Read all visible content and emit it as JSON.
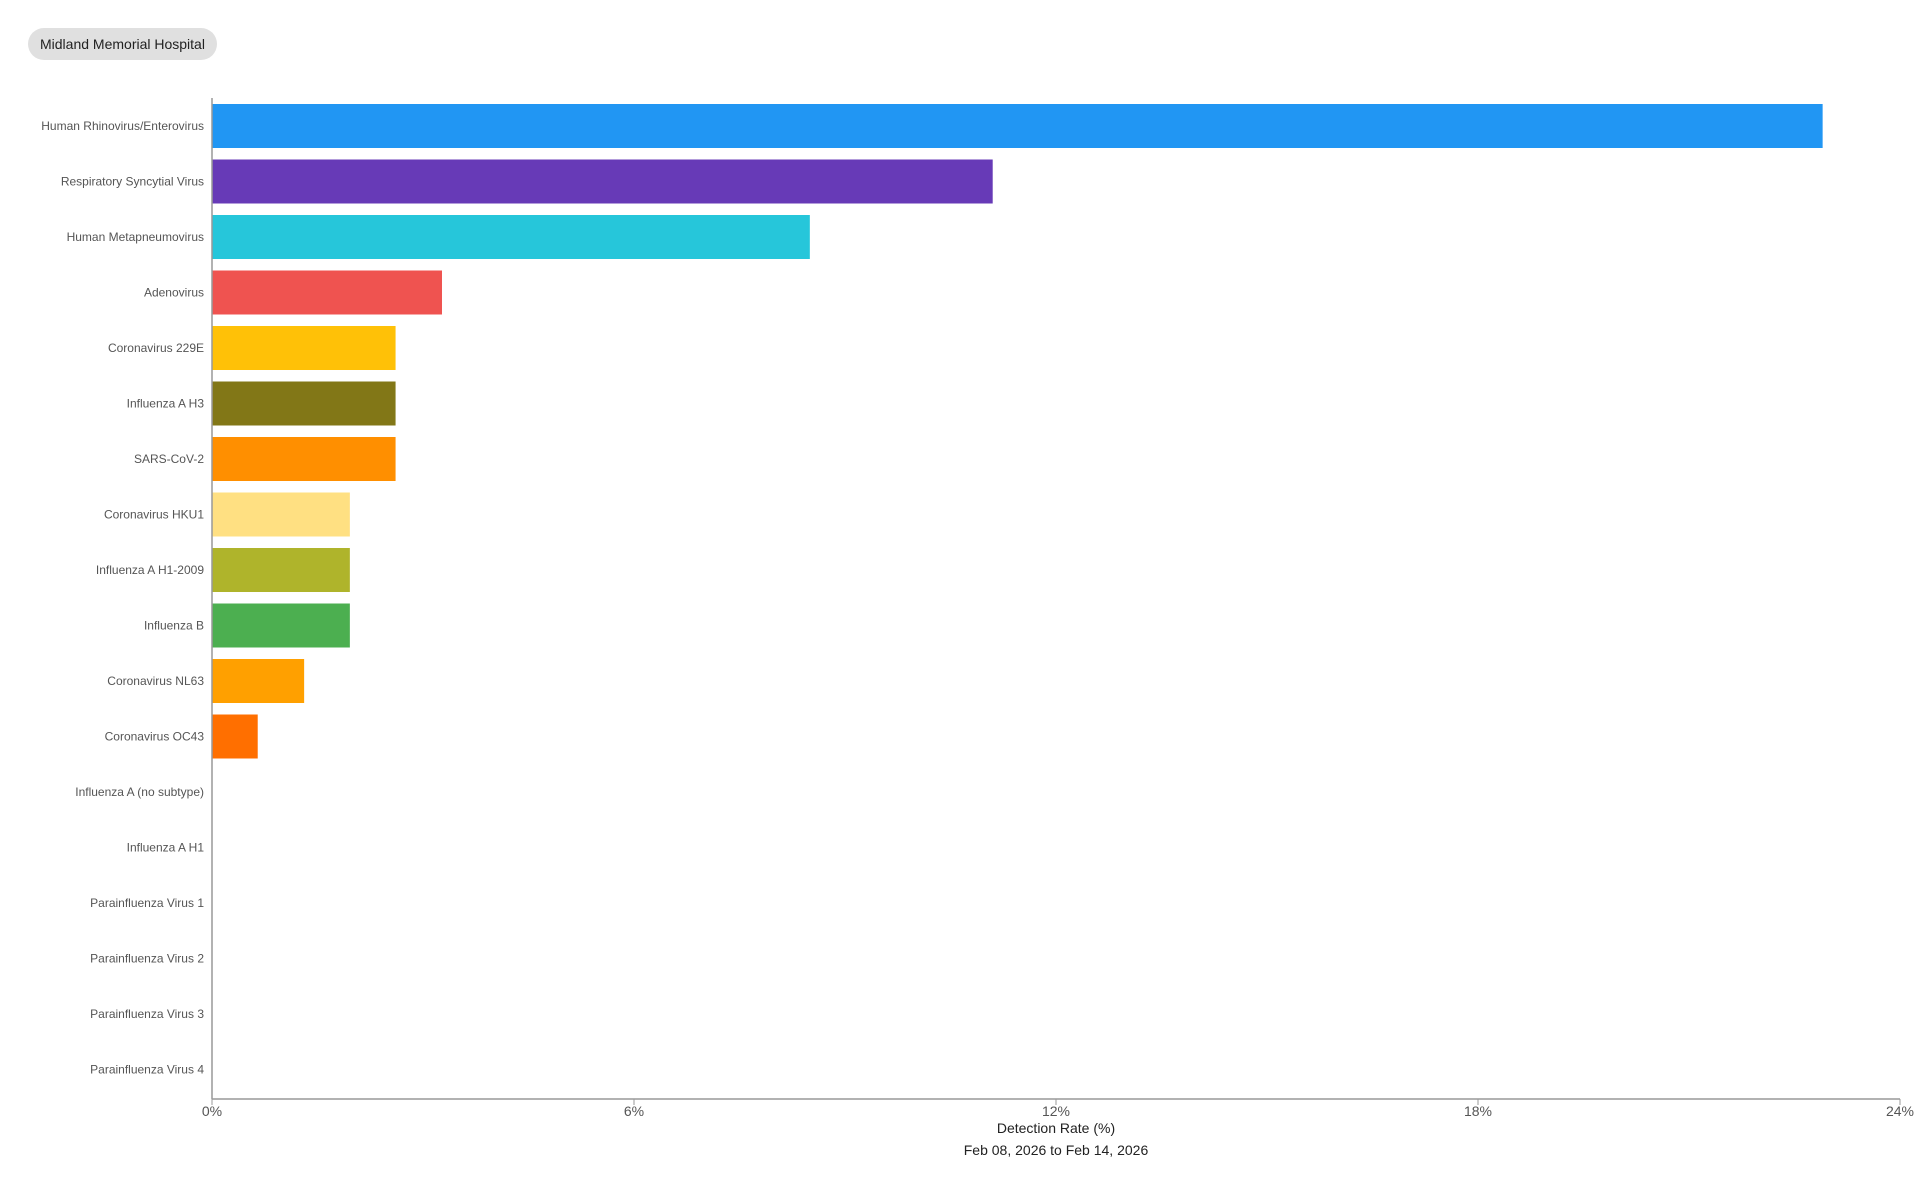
{
  "hospital": {
    "label": "Midland Memorial Hospital"
  },
  "chart_data": {
    "type": "bar",
    "orientation": "horizontal",
    "categories": [
      "Human Rhinovirus/Enterovirus",
      "Respiratory Syncytial Virus",
      "Human Metapneumovirus",
      "Adenovirus",
      "Coronavirus 229E",
      "Influenza A H3",
      "SARS-CoV-2",
      "Coronavirus HKU1",
      "Influenza A H1-2009",
      "Influenza B",
      "Coronavirus NL63",
      "Coronavirus OC43",
      "Influenza A (no subtype)",
      "Influenza A H1",
      "Parainfluenza Virus 1",
      "Parainfluenza Virus 2",
      "Parainfluenza Virus 3",
      "Parainfluenza Virus 4"
    ],
    "values": [
      22.9,
      11.1,
      8.5,
      3.27,
      2.61,
      2.61,
      2.61,
      1.96,
      1.96,
      1.96,
      1.31,
      0.65,
      0,
      0,
      0,
      0,
      0,
      0
    ],
    "colors": [
      "#2196f3",
      "#673ab7",
      "#26c6da",
      "#ef5350",
      "#ffc107",
      "#827717",
      "#ff8f00",
      "#ffe082",
      "#afb42b",
      "#4caf50",
      "#ffa000",
      "#ff6f00",
      "#9e9e9e",
      "#9e9e9e",
      "#9e9e9e",
      "#9e9e9e",
      "#9e9e9e",
      "#9e9e9e"
    ],
    "xlim": [
      0,
      24
    ],
    "xticks": [
      "0%",
      "6%",
      "12%",
      "18%",
      "24%"
    ],
    "xlabel": "Detection Rate (%)",
    "subtitle": "Feb 08, 2026 to Feb 14, 2026",
    "grid": false
  }
}
